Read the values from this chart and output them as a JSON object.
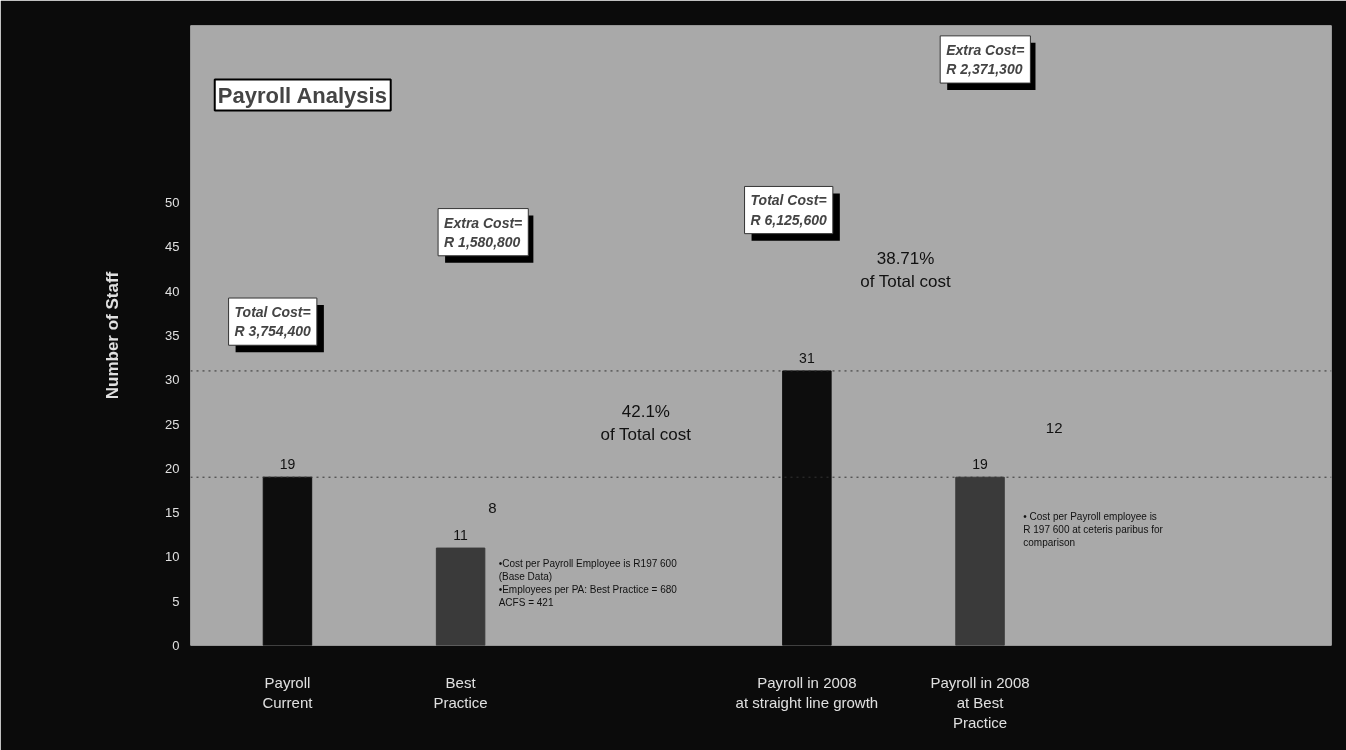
{
  "chart_data": {
    "type": "bar",
    "title": "Payroll Analysis",
    "ylabel": "Number of Staff",
    "categories": [
      "Payroll\nCurrent",
      "Best\nPractice",
      null,
      "Payroll in 2008\nat straight line growth",
      "Payroll in 2008\nat Best\nPractice"
    ],
    "values": [
      19,
      11,
      null,
      31,
      19
    ],
    "colors": [
      "#0d0d0d",
      "#3a3a3a",
      "#3a3a3a",
      "#0d0d0d",
      "#3a3a3a"
    ],
    "data_labels": true,
    "grid": false,
    "ylim": [
      0,
      70
    ],
    "yticks": [
      0,
      5,
      10,
      15,
      20,
      25,
      30,
      35,
      40,
      45,
      50
    ],
    "ref_lines": [
      {
        "axis": "y",
        "value": 19,
        "label": null,
        "color": "#333333",
        "line_style": "dotted"
      },
      {
        "axis": "y",
        "value": 31,
        "label": null,
        "color": "#333333",
        "line_style": "dotted"
      }
    ],
    "annotations": [
      "Total Cost=\nR 3,754,400",
      "Extra Cost=\nR 1,580,800",
      "Total Cost=\nR 6,125,600",
      "Extra Cost=\nR 2,371,300",
      "42.1%\nof Total cost",
      "38.71%\nof Total cost",
      "8",
      "12",
      "•Cost per Payroll Employee is R197 600\n(Base Data)\n•Employees per PA: Best Practice = 680\n   ACFS = 421",
      "• Cost per Payroll employee is\nR 197 600 at ceteris paribus for\ncomparison"
    ]
  }
}
